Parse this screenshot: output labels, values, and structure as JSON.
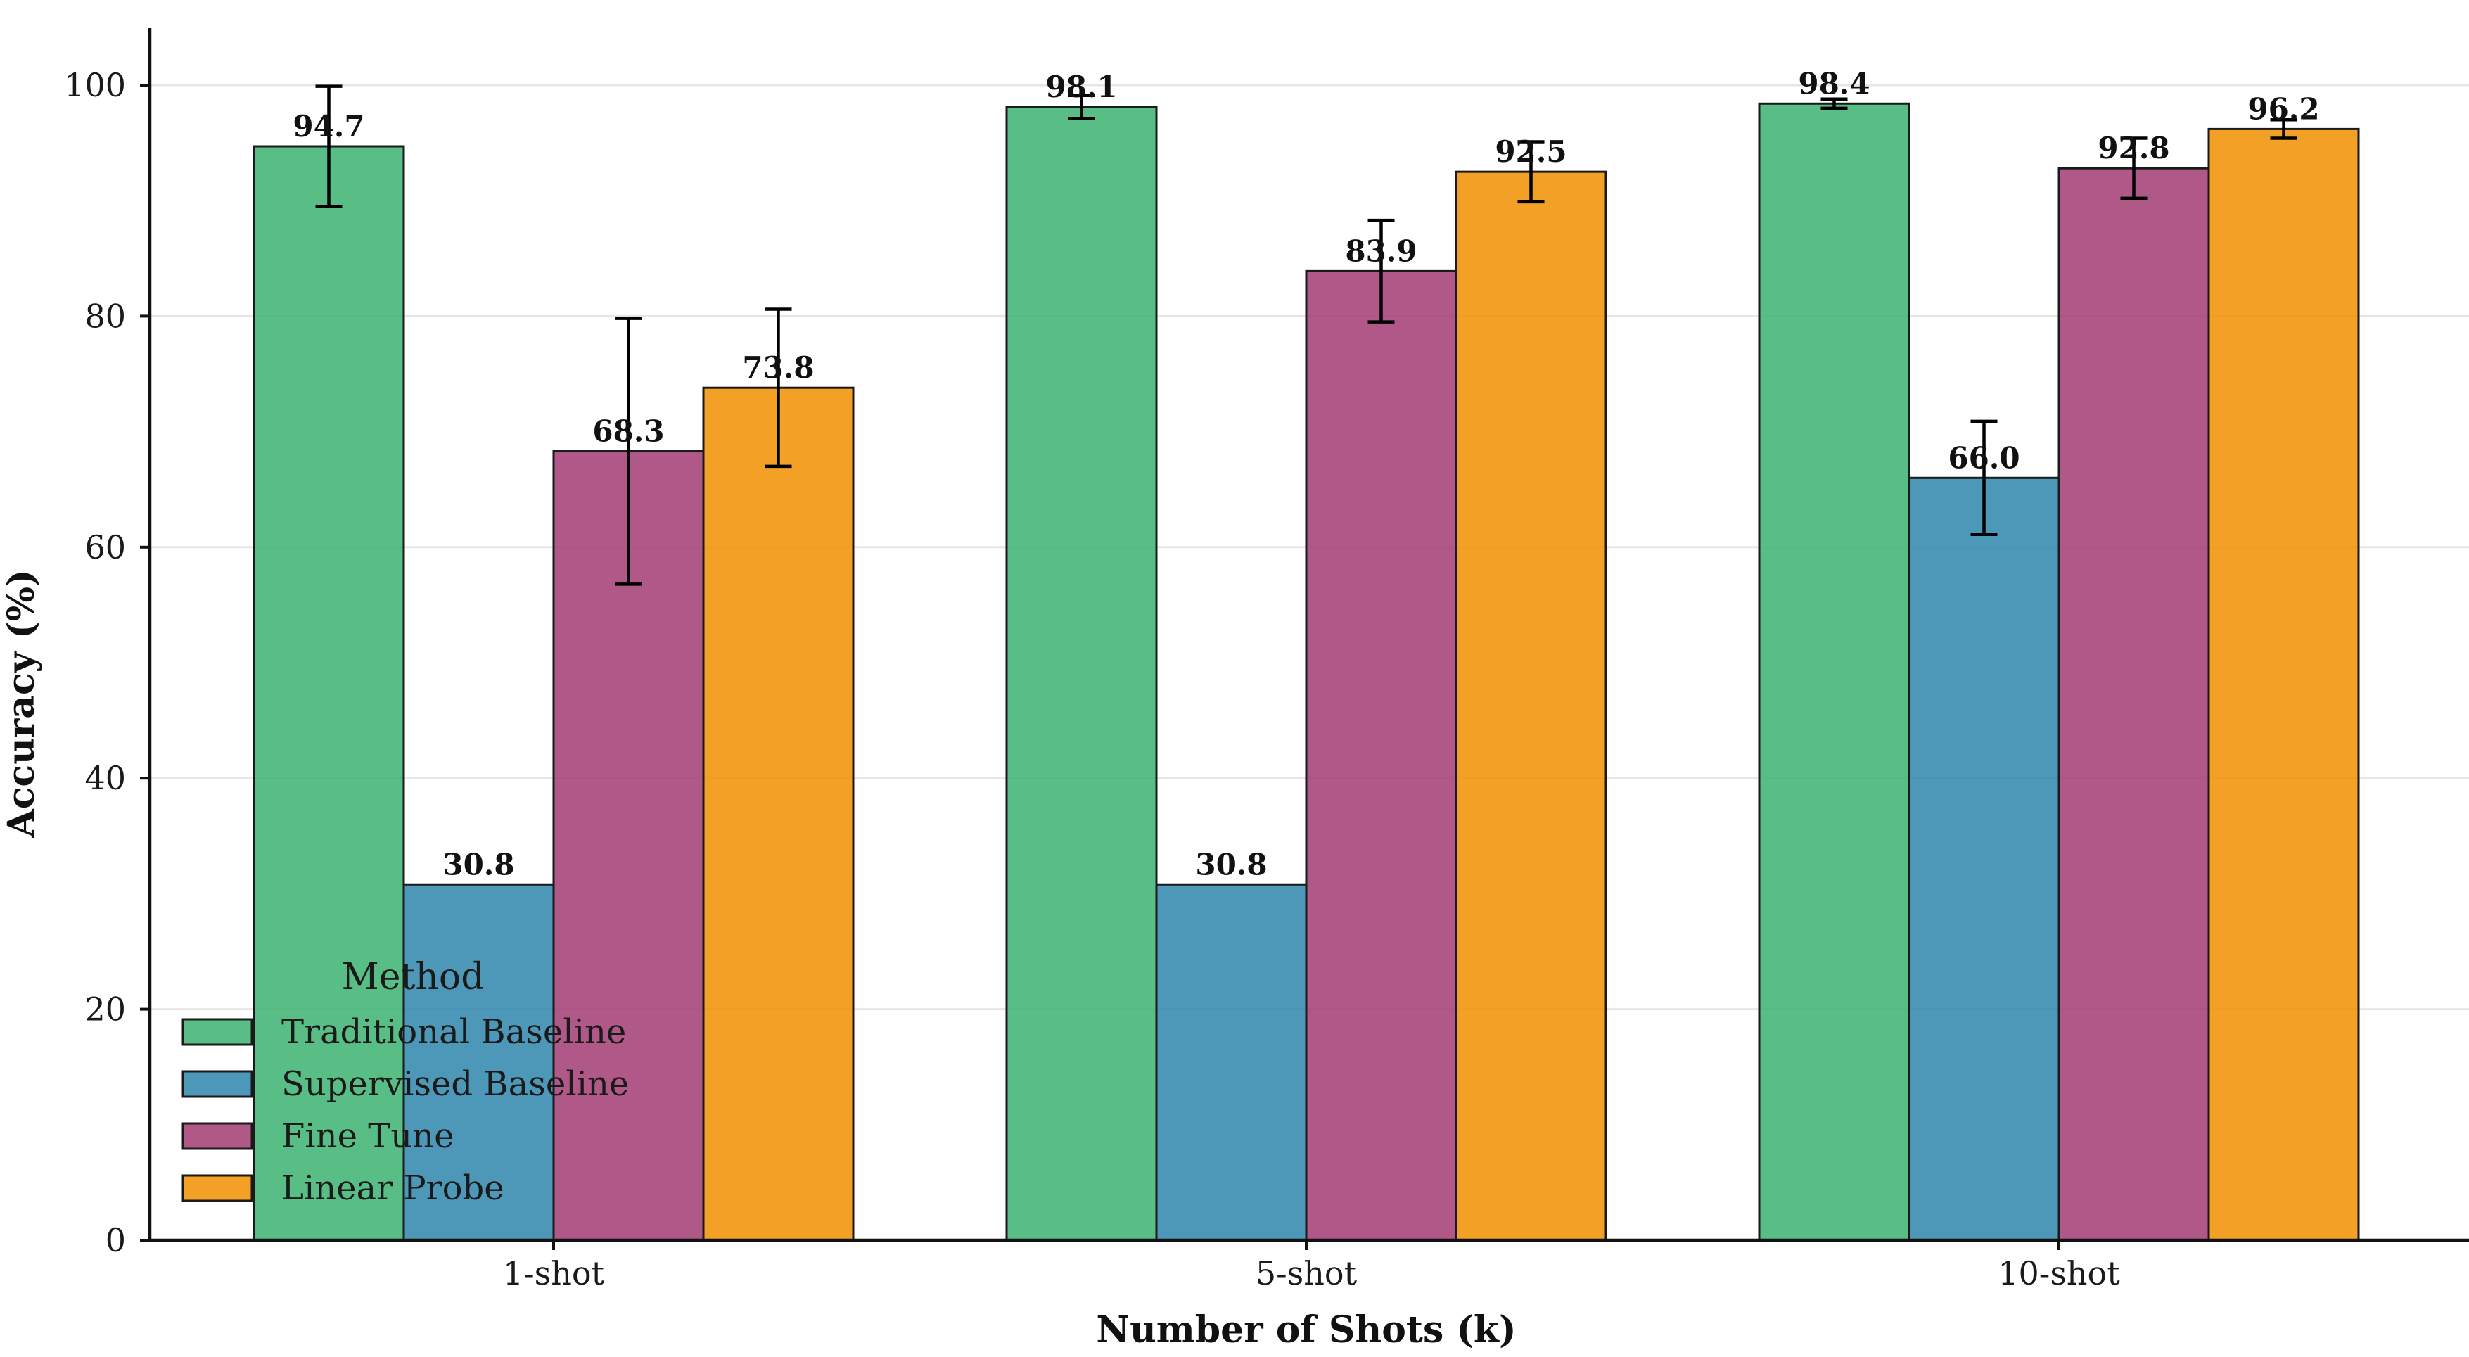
{
  "chart_data": {
    "type": "bar",
    "title": "",
    "xlabel": "Number of Shots (k)",
    "ylabel": "Accuracy (%)",
    "ylim": [
      0,
      105
    ],
    "yticks": [
      0,
      20,
      40,
      60,
      80,
      100
    ],
    "grid": "horizontal",
    "legend_title": "Method",
    "legend_position": "lower-left",
    "categories": [
      "1-shot",
      "5-shot",
      "10-shot"
    ],
    "series": [
      {
        "name": "Traditional Baseline",
        "color": "#3cb371",
        "values": [
          94.7,
          98.1,
          98.4
        ],
        "errors": [
          5.2,
          1.0,
          0.4
        ]
      },
      {
        "name": "Supervised Baseline",
        "color": "#2e86ab",
        "values": [
          30.8,
          30.8,
          66.0
        ],
        "errors": [
          0,
          0,
          4.9
        ]
      },
      {
        "name": "Fine Tune",
        "color": "#a23b72",
        "values": [
          68.3,
          83.9,
          92.8
        ],
        "errors": [
          11.5,
          4.4,
          2.6
        ]
      },
      {
        "name": "Linear Probe",
        "color": "#f18f01",
        "values": [
          73.8,
          92.5,
          96.2
        ],
        "errors": [
          6.8,
          2.6,
          0.8
        ]
      }
    ]
  }
}
